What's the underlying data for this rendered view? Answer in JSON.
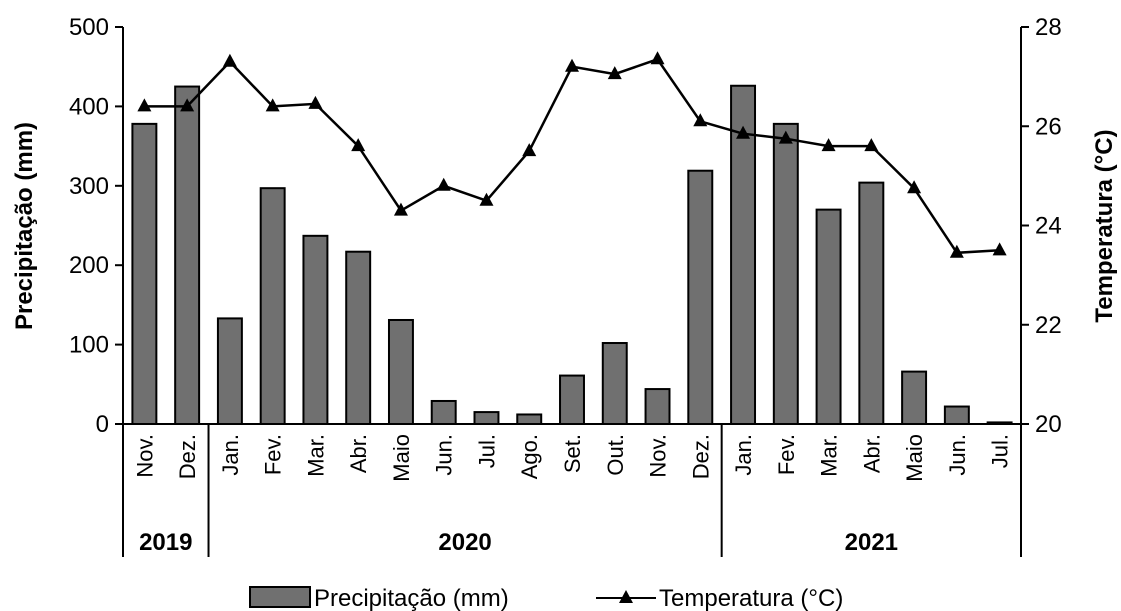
{
  "chart_data": {
    "type": "bar",
    "categories": [
      "Nov.",
      "Dez.",
      "Jan.",
      "Fev.",
      "Mar.",
      "Abr.",
      "Maio",
      "Jun.",
      "Jul.",
      "Ago.",
      "Set.",
      "Out.",
      "Nov.",
      "Dez.",
      "Jan.",
      "Fev.",
      "Mar.",
      "Abr.",
      "Maio",
      "Jun.",
      "Jul."
    ],
    "year_groups": [
      {
        "label": "2019",
        "start": 0,
        "end": 1
      },
      {
        "label": "2020",
        "start": 2,
        "end": 13
      },
      {
        "label": "2021",
        "start": 14,
        "end": 20
      }
    ],
    "series": [
      {
        "name": "Precipitação (mm)",
        "type": "bar",
        "axis": "left",
        "values": [
          378,
          425,
          133,
          297,
          237,
          217,
          131,
          29,
          15,
          12,
          61,
          102,
          44,
          319,
          426,
          378,
          270,
          304,
          66,
          22,
          2
        ]
      },
      {
        "name": "Temperatura (°C)",
        "type": "line",
        "axis": "right",
        "values": [
          26.4,
          26.4,
          27.3,
          26.4,
          26.45,
          25.6,
          24.3,
          24.8,
          24.5,
          25.5,
          27.2,
          27.05,
          27.35,
          26.1,
          25.85,
          25.75,
          25.6,
          25.6,
          24.75,
          23.45,
          23.5
        ]
      }
    ],
    "ylabel": "Precipitação (mm)",
    "ylim": [
      0,
      500
    ],
    "yticks": [
      "0",
      "100",
      "200",
      "300",
      "400",
      "500"
    ],
    "y2label": "Temperatura (°C)",
    "y2lim": [
      20,
      28
    ],
    "y2ticks": [
      "20",
      "22",
      "24",
      "26",
      "28"
    ],
    "grid": false,
    "legend_position": "bottom",
    "colors": {
      "bar_fill": "#707070",
      "bar_stroke": "#000000",
      "line": "#000000"
    }
  }
}
